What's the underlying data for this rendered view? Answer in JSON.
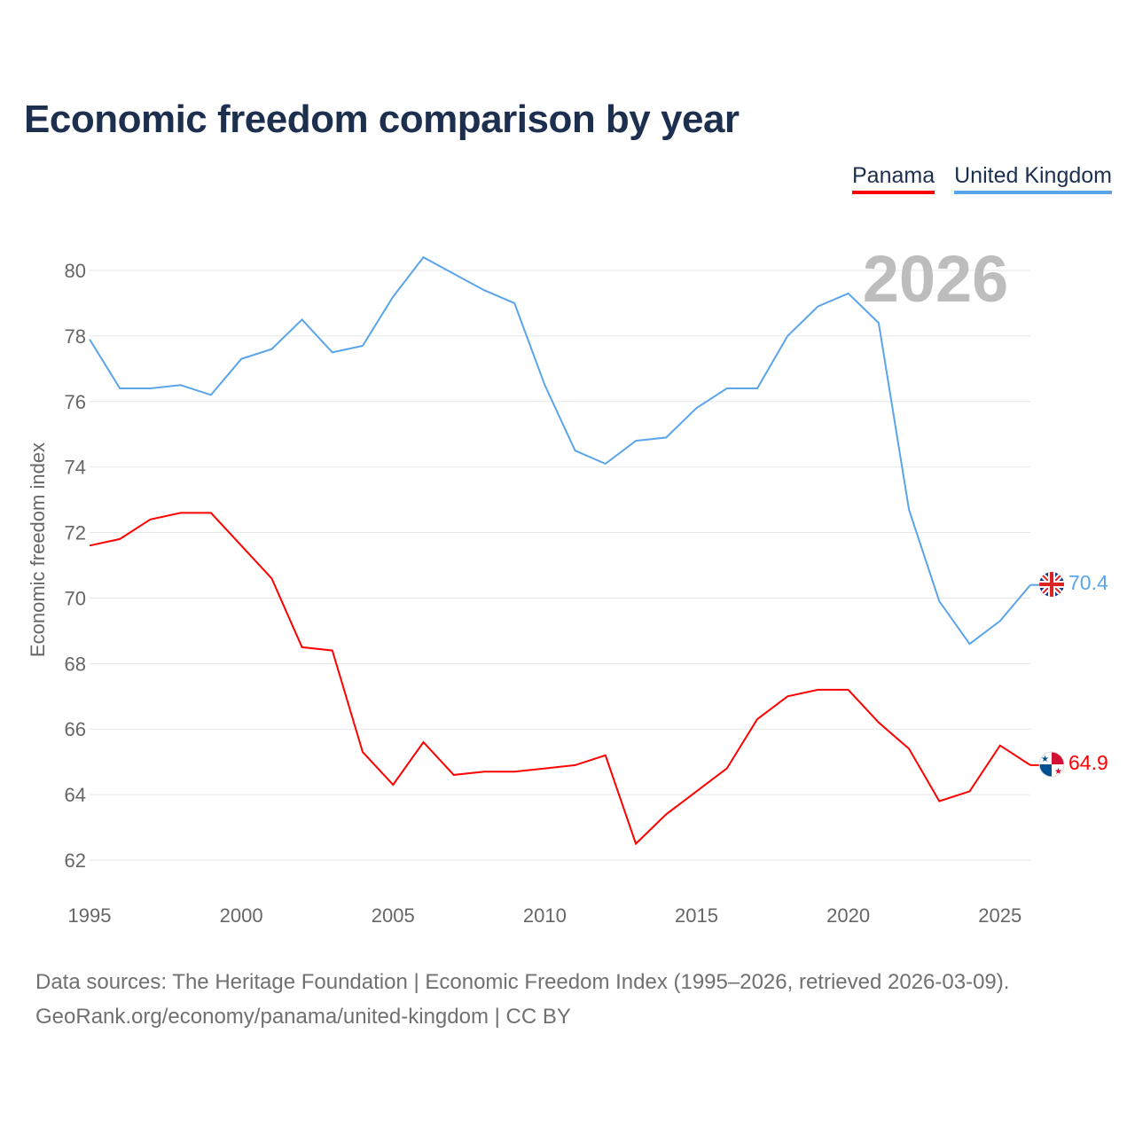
{
  "title": "Economic freedom comparison by year",
  "legend": [
    {
      "label": "Panama",
      "color": "#ff0000"
    },
    {
      "label": "United Kingdom",
      "color": "#5aa5ea"
    }
  ],
  "year_watermark": "2026",
  "footer": {
    "line1": "Data sources: The Heritage Foundation | Economic Freedom Index (1995–2026, retrieved 2026-03-09).",
    "line2": "GeoRank.org/economy/panama/united-kingdom | CC BY"
  },
  "chart_data": {
    "type": "line",
    "title": "Economic freedom comparison by year",
    "xlabel": "",
    "ylabel": "Economic freedom index",
    "xlim": [
      1995,
      2026
    ],
    "ylim": [
      62,
      80
    ],
    "x_ticks": [
      1995,
      2000,
      2005,
      2010,
      2015,
      2020,
      2025
    ],
    "y_ticks": [
      62,
      64,
      66,
      68,
      70,
      72,
      74,
      76,
      78,
      80
    ],
    "grid": true,
    "legend_position": "top-right",
    "x": [
      1995,
      1996,
      1997,
      1998,
      1999,
      2000,
      2001,
      2002,
      2003,
      2004,
      2005,
      2006,
      2007,
      2008,
      2009,
      2010,
      2011,
      2012,
      2013,
      2014,
      2015,
      2016,
      2017,
      2018,
      2019,
      2020,
      2021,
      2022,
      2023,
      2024,
      2025,
      2026
    ],
    "series": [
      {
        "name": "Panama",
        "color": "#ff0000",
        "end_label": "64.9",
        "values": [
          71.6,
          71.8,
          72.4,
          72.6,
          72.6,
          71.6,
          70.6,
          68.5,
          68.4,
          65.3,
          64.3,
          65.6,
          64.6,
          64.7,
          64.7,
          64.8,
          64.9,
          65.2,
          62.5,
          63.4,
          64.1,
          64.8,
          66.3,
          67.0,
          67.2,
          67.2,
          66.2,
          65.4,
          63.8,
          64.1,
          65.5,
          64.9
        ]
      },
      {
        "name": "United Kingdom",
        "color": "#5aa5ea",
        "end_label": "70.4",
        "values": [
          77.9,
          76.4,
          76.4,
          76.5,
          76.2,
          77.3,
          77.6,
          78.5,
          77.5,
          77.7,
          79.2,
          80.4,
          79.9,
          79.4,
          79.0,
          76.5,
          74.5,
          74.1,
          74.8,
          74.9,
          75.8,
          76.4,
          76.4,
          78.0,
          78.9,
          79.3,
          78.4,
          72.7,
          69.9,
          68.6,
          69.3,
          70.4
        ]
      }
    ]
  }
}
